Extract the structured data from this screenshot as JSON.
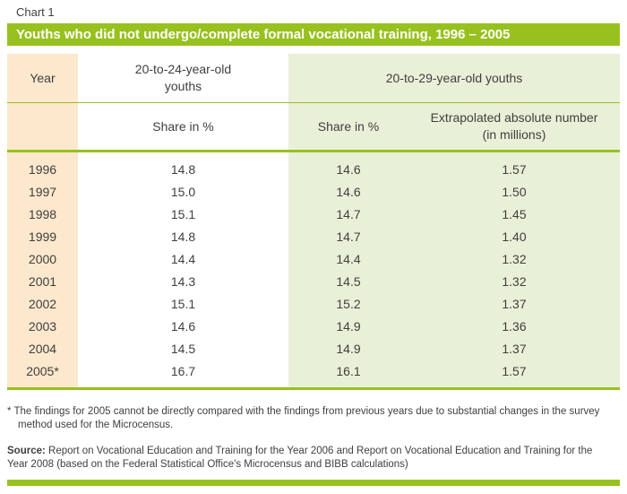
{
  "chart_label": "Chart 1",
  "title": "Youths who did not undergo/complete formal vocational training, 1996 – 2005",
  "table": {
    "col_year_header": "Year",
    "col_20_24_header": "20-to-24-year-old youths",
    "group_20_29_header": "20-to-29-year-old youths",
    "subheader_share_20_24": "Share in %",
    "subheader_share_20_29": "Share in %",
    "subheader_absolute": "Extrapolated absolute number (in millions)"
  },
  "chart_data": {
    "type": "table",
    "title": "Youths who did not undergo/complete formal vocational training, 1996 – 2005",
    "columns": [
      "Year",
      "20-to-24-year-old youths – Share in %",
      "20-to-29-year-old youths – Share in %",
      "20-to-29-year-old youths – Extrapolated absolute number (in millions)"
    ],
    "rows": [
      [
        "1996",
        "14.8",
        "14.6",
        "1.57"
      ],
      [
        "1997",
        "15.0",
        "14.6",
        "1.50"
      ],
      [
        "1998",
        "15.1",
        "14.7",
        "1.45"
      ],
      [
        "1999",
        "14.8",
        "14.7",
        "1.40"
      ],
      [
        "2000",
        "14.4",
        "14.4",
        "1.32"
      ],
      [
        "2001",
        "14.3",
        "14.5",
        "1.32"
      ],
      [
        "2002",
        "15.1",
        "15.2",
        "1.37"
      ],
      [
        "2003",
        "14.6",
        "14.9",
        "1.36"
      ],
      [
        "2004",
        "14.5",
        "14.9",
        "1.37"
      ],
      [
        "2005*",
        "16.7",
        "16.1",
        "1.57"
      ]
    ]
  },
  "footnote": "* The findings for 2005 cannot be directly compared with the findings from previous years due to substantial changes in the survey method used for the Microcensus.",
  "source_label": "Source:",
  "source_text": "Report on Vocational Education and Training for the Year 2006 and Report on Vocational Education and Training for the Year 2008 (based on the Federal Statistical Office's Microcensus and BIBB calculations)",
  "colors": {
    "accent_green": "#97c11e",
    "light_green_cell": "#e9f0d8",
    "peach_cell": "#fce8cd",
    "text": "#3f3f3e",
    "title_text": "#ffffff"
  }
}
